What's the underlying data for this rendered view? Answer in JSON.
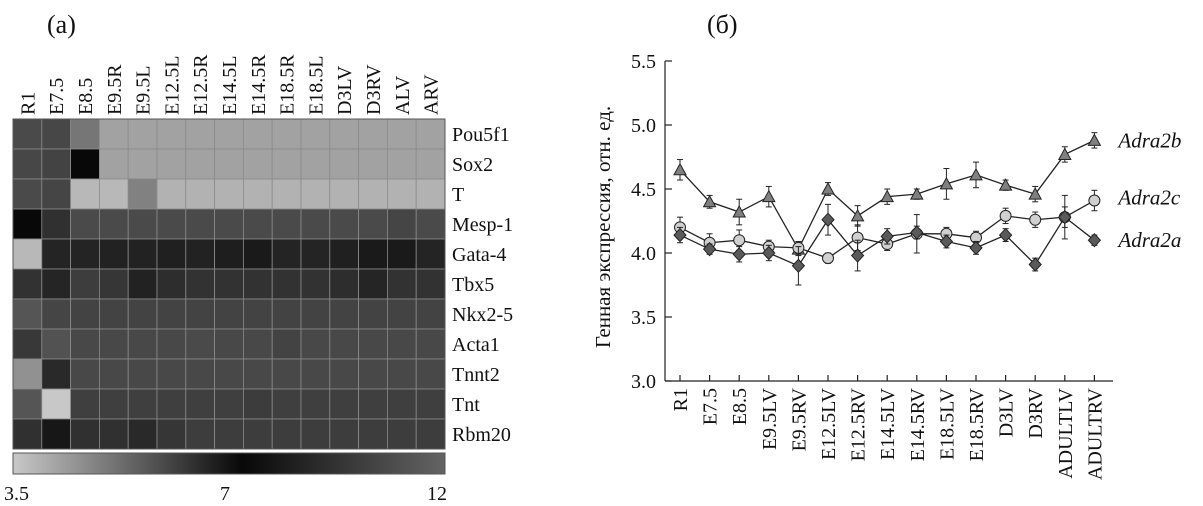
{
  "panel_a_label": "(a)",
  "panel_b_label": "(б)",
  "chart_data": [
    {
      "type": "heatmap",
      "columns": [
        "R1",
        "E7.5",
        "E8.5",
        "E9.5R",
        "E9.5L",
        "E12.5L",
        "E12.5R",
        "E14.5L",
        "E14.5R",
        "E18.5R",
        "E18.5L",
        "D3LV",
        "D3RV",
        "ALV",
        "ARV"
      ],
      "rows": [
        "Pou5f1",
        "Sox2",
        "T",
        "Mesp-1",
        "Gata-4",
        "Tbx5",
        "Nkx2-5",
        "Acta1",
        "Tnnt2",
        "Tnt",
        "Rbm20"
      ],
      "values": [
        [
          10.6,
          10.4,
          5.0,
          4.2,
          4.2,
          4.2,
          4.2,
          4.2,
          4.2,
          4.2,
          4.2,
          4.2,
          4.2,
          4.2,
          4.2
        ],
        [
          10.4,
          10.2,
          7.0,
          4.2,
          4.2,
          4.2,
          4.2,
          4.2,
          4.2,
          4.2,
          4.2,
          4.2,
          4.2,
          4.2,
          4.2
        ],
        [
          10.6,
          10.3,
          3.8,
          3.8,
          4.8,
          3.9,
          3.9,
          3.9,
          3.9,
          3.9,
          3.9,
          3.9,
          3.9,
          3.9,
          3.9
        ],
        [
          7.0,
          9.2,
          10.6,
          10.6,
          10.6,
          10.6,
          10.6,
          10.6,
          10.6,
          10.6,
          10.6,
          10.6,
          10.6,
          10.3,
          10.6
        ],
        [
          3.8,
          8.5,
          8.5,
          8.4,
          8.4,
          8.3,
          8.4,
          8.2,
          8.0,
          8.5,
          8.5,
          8.3,
          8.0,
          8.0,
          8.5
        ],
        [
          9.3,
          8.6,
          9.9,
          9.5,
          8.4,
          9.0,
          9.3,
          9.3,
          9.3,
          9.3,
          9.3,
          9.0,
          8.6,
          9.3,
          9.3
        ],
        [
          11.2,
          10.3,
          10.2,
          10.2,
          10.2,
          10.2,
          10.2,
          10.2,
          10.2,
          10.2,
          10.2,
          10.2,
          10.2,
          10.2,
          10.2
        ],
        [
          9.6,
          11.0,
          10.5,
          10.5,
          10.5,
          10.5,
          10.6,
          10.5,
          10.5,
          10.2,
          10.5,
          10.5,
          10.5,
          10.5,
          10.5
        ],
        [
          4.5,
          8.8,
          10.5,
          10.5,
          10.5,
          10.5,
          10.5,
          10.5,
          10.5,
          10.5,
          10.5,
          10.5,
          10.5,
          10.5,
          10.5
        ],
        [
          5.6,
          3.5,
          10.0,
          10.0,
          10.0,
          10.0,
          10.0,
          10.0,
          9.8,
          10.0,
          10.0,
          10.0,
          10.0,
          10.0,
          10.0
        ],
        [
          9.2,
          7.8,
          9.2,
          9.2,
          8.8,
          9.5,
          9.9,
          9.9,
          9.9,
          9.9,
          9.9,
          9.9,
          9.9,
          9.9,
          9.9
        ]
      ],
      "colorbar": {
        "min": 3.5,
        "mid": 7,
        "max": 12,
        "labels": [
          "3.5",
          "7",
          "12"
        ],
        "colors": [
          "#c8c8c8",
          "#080808",
          "#646464"
        ]
      }
    },
    {
      "type": "line",
      "categories": [
        "R1",
        "E7.5",
        "E8.5",
        "E9.5LV",
        "E9.5RV",
        "E12.5LV",
        "E12.5RV",
        "E14.5LV",
        "E14.5RV",
        "E18.5LV",
        "E18.5RV",
        "D3LV",
        "D3RV",
        "ADULTLV",
        "ADULTRV"
      ],
      "ylabel": "Генная экспрессия, отн. ед.",
      "ylim": [
        3.0,
        5.5
      ],
      "yticks": [
        "3.0",
        "3.5",
        "4.0",
        "4.5",
        "5.0",
        "5.5"
      ],
      "series": [
        {
          "name": "Adra2b",
          "marker": "triangle",
          "fill": "#808080",
          "values": [
            4.65,
            4.4,
            4.32,
            4.44,
            4.03,
            4.5,
            4.29,
            4.44,
            4.46,
            4.54,
            4.61,
            4.53,
            4.46,
            4.77,
            4.88
          ],
          "errors": [
            0.08,
            0.05,
            0.1,
            0.08,
            0.05,
            0.05,
            0.08,
            0.06,
            0.04,
            0.12,
            0.1,
            0.04,
            0.06,
            0.06,
            0.06
          ]
        },
        {
          "name": "Adra2c",
          "marker": "circle",
          "fill": "#d0d0d0",
          "values": [
            4.2,
            4.08,
            4.1,
            4.05,
            4.04,
            3.96,
            4.12,
            4.07,
            4.15,
            4.15,
            4.12,
            4.29,
            4.26,
            4.28,
            4.41
          ],
          "errors": [
            0.08,
            0.07,
            0.08,
            0.05,
            0.05,
            0.04,
            0.1,
            0.05,
            0.15,
            0.05,
            0.05,
            0.06,
            0.06,
            0.17,
            0.08
          ]
        },
        {
          "name": "Adra2a",
          "marker": "diamond",
          "fill": "#5a5a5a",
          "values": [
            4.14,
            4.03,
            3.99,
            4.0,
            3.9,
            4.26,
            3.98,
            4.13,
            4.16,
            4.09,
            4.04,
            4.14,
            3.91,
            4.28,
            4.1
          ],
          "errors": [
            0.06,
            0.04,
            0.06,
            0.06,
            0.15,
            0.12,
            0.12,
            0.06,
            0.05,
            0.05,
            0.05,
            0.05,
            0.05,
            0.08,
            0.04
          ]
        }
      ]
    }
  ]
}
